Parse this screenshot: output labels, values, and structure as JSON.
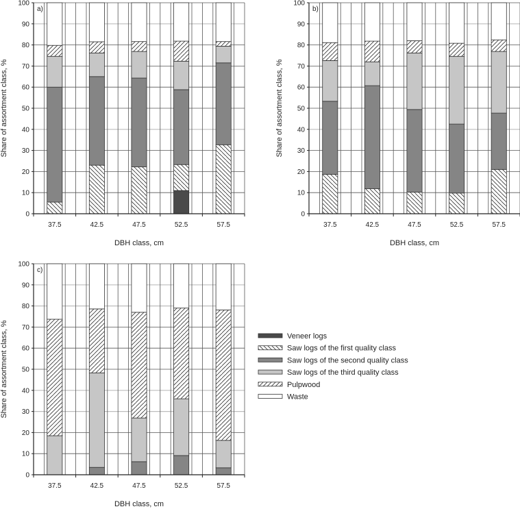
{
  "chart_data": [
    {
      "type": "bar",
      "stacked": true,
      "panel_label": "a)",
      "xlabel": "DBH class, cm",
      "ylabel": "Share of assortment class, %",
      "ylim": [
        0,
        100
      ],
      "yticks": [
        0,
        10,
        20,
        30,
        40,
        50,
        60,
        70,
        80,
        90,
        100
      ],
      "grid": true,
      "categories": [
        "37.5",
        "42.5",
        "47.5",
        "52.5",
        "57.5"
      ],
      "series": [
        {
          "name": "Veneer logs",
          "values": [
            0,
            0,
            0,
            11.0,
            0
          ]
        },
        {
          "name": "Saw logs of the first quality class",
          "values": [
            5.5,
            23.0,
            22.2,
            12.3,
            32.7
          ]
        },
        {
          "name": "Saw logs of the second quality class",
          "values": [
            54.5,
            42.0,
            42.1,
            35.5,
            38.8
          ]
        },
        {
          "name": "Saw logs of the third quality class",
          "values": [
            14.6,
            11.2,
            12.6,
            13.5,
            7.9
          ]
        },
        {
          "name": "Pulpwood",
          "values": [
            5.2,
            5.3,
            4.7,
            9.5,
            2.2
          ]
        },
        {
          "name": "Waste",
          "values": [
            20.2,
            18.5,
            18.4,
            18.2,
            18.4
          ]
        }
      ]
    },
    {
      "type": "bar",
      "stacked": true,
      "panel_label": "b)",
      "xlabel": "DBH class, cm",
      "ylabel": "Share of assortment class, %",
      "ylim": [
        0,
        100
      ],
      "yticks": [
        0,
        10,
        20,
        30,
        40,
        50,
        60,
        70,
        80,
        90,
        100
      ],
      "grid": true,
      "categories": [
        "37.5",
        "42.5",
        "47.5",
        "52.5",
        "57.5"
      ],
      "series": [
        {
          "name": "Veneer logs",
          "values": [
            0,
            0,
            0,
            0,
            0
          ]
        },
        {
          "name": "Saw logs of the first quality class",
          "values": [
            18.7,
            11.9,
            10.2,
            9.8,
            21.0
          ]
        },
        {
          "name": "Saw logs of the second quality class",
          "values": [
            34.6,
            48.8,
            39.2,
            32.7,
            26.7
          ]
        },
        {
          "name": "Saw logs of the third quality class",
          "values": [
            19.3,
            11.3,
            26.8,
            32.1,
            29.2
          ]
        },
        {
          "name": "Pulpwood",
          "values": [
            8.5,
            9.8,
            5.8,
            6.2,
            5.5
          ]
        },
        {
          "name": "Waste",
          "values": [
            18.9,
            18.2,
            18.0,
            19.2,
            17.6
          ]
        }
      ]
    },
    {
      "type": "bar",
      "stacked": true,
      "panel_label": "c)",
      "xlabel": "DBH class, cm",
      "ylabel": "Share of assortment class, %",
      "ylim": [
        0,
        100
      ],
      "yticks": [
        0,
        10,
        20,
        30,
        40,
        50,
        60,
        70,
        80,
        90,
        100
      ],
      "grid": true,
      "categories": [
        "37.5",
        "42.5",
        "47.5",
        "52.5",
        "57.5"
      ],
      "series": [
        {
          "name": "Veneer logs",
          "values": [
            0,
            0,
            0,
            0,
            0
          ]
        },
        {
          "name": "Saw logs of the first quality class",
          "values": [
            0,
            0,
            0,
            0,
            0
          ]
        },
        {
          "name": "Saw logs of the second quality class",
          "values": [
            0,
            3.5,
            6.2,
            9.1,
            3.3
          ]
        },
        {
          "name": "Saw logs of the third quality class",
          "values": [
            18.5,
            44.8,
            20.7,
            26.9,
            13.0
          ]
        },
        {
          "name": "Pulpwood",
          "values": [
            55.2,
            30.3,
            50.1,
            43.0,
            61.8
          ]
        },
        {
          "name": "Waste",
          "values": [
            26.3,
            21.4,
            23.0,
            21.0,
            21.9
          ]
        }
      ]
    }
  ],
  "legend": {
    "items": [
      {
        "label": "Veneer logs",
        "fill": "#4a4a4a",
        "pattern": "solid"
      },
      {
        "label": "Saw logs of the first quality class",
        "fill": "#ffffff",
        "pattern": "backslash"
      },
      {
        "label": "Saw logs of the second quality class",
        "fill": "#858585",
        "pattern": "solid"
      },
      {
        "label": "Saw logs of the third quality class",
        "fill": "#c6c6c6",
        "pattern": "solid"
      },
      {
        "label": "Pulpwood",
        "fill": "#ffffff",
        "pattern": "slash"
      },
      {
        "label": "Waste",
        "fill": "#ffffff",
        "pattern": "solid"
      }
    ],
    "position": "right of panel c"
  }
}
